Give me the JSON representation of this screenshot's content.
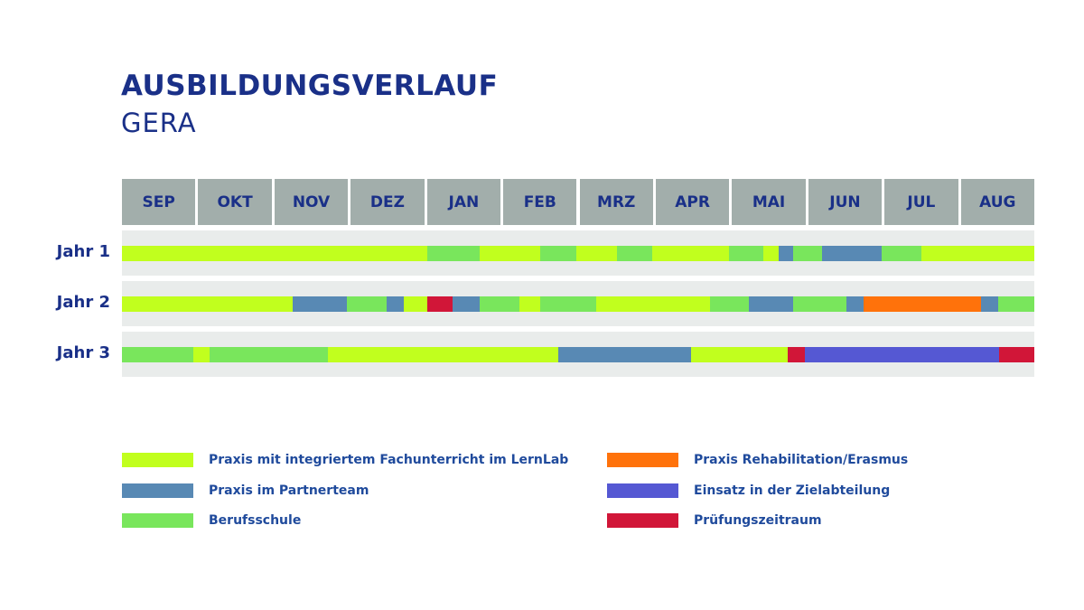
{
  "header": {
    "title": "AUSBILDUNGSVERLAUF",
    "subtitle": "GERA"
  },
  "colors": {
    "lernlab": "#c1ff1e",
    "partner": "#5889b4",
    "schule": "#79e65c",
    "reha": "#ff720b",
    "ziel": "#5558d3",
    "pruefung": "#d11638",
    "month_bg": "#a2aeab",
    "band_bg": "#e9eceb",
    "text": "#1a3088"
  },
  "chart_data": {
    "type": "gantt",
    "title": "AUSBILDUNGSVERLAUF",
    "subtitle": "GERA",
    "months": [
      "SEP",
      "OKT",
      "NOV",
      "DEZ",
      "JAN",
      "FEB",
      "MRZ",
      "APR",
      "MAI",
      "JUN",
      "JUL",
      "AUG"
    ],
    "unit": "months from start of SEP (0-12)",
    "legend": [
      {
        "key": "lernlab",
        "label": "Praxis mit integriertem Fachunterricht im LernLab",
        "color": "#c1ff1e"
      },
      {
        "key": "partner",
        "label": "Praxis im Partnerteam",
        "color": "#5889b4"
      },
      {
        "key": "schule",
        "label": "Berufsschule",
        "color": "#79e65c"
      },
      {
        "key": "reha",
        "label": "Praxis Rehabilitation/Erasmus",
        "color": "#ff720b"
      },
      {
        "key": "ziel",
        "label": "Einsatz in der Zielabteilung",
        "color": "#5558d3"
      },
      {
        "key": "pruefung",
        "label": "Prüfungszeitraum",
        "color": "#d11638"
      }
    ],
    "rows": [
      {
        "label": "Jahr 1",
        "segments": [
          {
            "type": "lernlab",
            "start": 0.0,
            "end": 4.02
          },
          {
            "type": "schule",
            "start": 4.02,
            "end": 4.71
          },
          {
            "type": "lernlab",
            "start": 4.71,
            "end": 5.5
          },
          {
            "type": "schule",
            "start": 5.5,
            "end": 5.98
          },
          {
            "type": "lernlab",
            "start": 5.98,
            "end": 6.51
          },
          {
            "type": "schule",
            "start": 6.51,
            "end": 6.98
          },
          {
            "type": "lernlab",
            "start": 6.98,
            "end": 7.98
          },
          {
            "type": "schule",
            "start": 7.98,
            "end": 8.43
          },
          {
            "type": "lernlab",
            "start": 8.43,
            "end": 8.64
          },
          {
            "type": "partner",
            "start": 8.64,
            "end": 8.83
          },
          {
            "type": "schule",
            "start": 8.83,
            "end": 9.21
          },
          {
            "type": "partner",
            "start": 9.21,
            "end": 9.99
          },
          {
            "type": "schule",
            "start": 9.99,
            "end": 10.52
          },
          {
            "type": "lernlab",
            "start": 10.52,
            "end": 12.0
          }
        ]
      },
      {
        "label": "Jahr 2",
        "segments": [
          {
            "type": "lernlab",
            "start": 0.0,
            "end": 2.25
          },
          {
            "type": "partner",
            "start": 2.25,
            "end": 2.96
          },
          {
            "type": "schule",
            "start": 2.96,
            "end": 3.48
          },
          {
            "type": "partner",
            "start": 3.48,
            "end": 3.71
          },
          {
            "type": "lernlab",
            "start": 3.71,
            "end": 4.02
          },
          {
            "type": "pruefung",
            "start": 4.02,
            "end": 4.35
          },
          {
            "type": "partner",
            "start": 4.35,
            "end": 4.71
          },
          {
            "type": "schule",
            "start": 4.71,
            "end": 5.23
          },
          {
            "type": "lernlab",
            "start": 5.23,
            "end": 5.5
          },
          {
            "type": "schule",
            "start": 5.5,
            "end": 6.24
          },
          {
            "type": "lernlab",
            "start": 6.24,
            "end": 7.74
          },
          {
            "type": "schule",
            "start": 7.74,
            "end": 8.25
          },
          {
            "type": "partner",
            "start": 8.25,
            "end": 8.83
          },
          {
            "type": "schule",
            "start": 8.83,
            "end": 9.53
          },
          {
            "type": "partner",
            "start": 9.53,
            "end": 9.76
          },
          {
            "type": "reha",
            "start": 9.76,
            "end": 11.3
          },
          {
            "type": "partner",
            "start": 11.3,
            "end": 11.52
          },
          {
            "type": "schule",
            "start": 11.52,
            "end": 12.0
          }
        ]
      },
      {
        "label": "Jahr 3",
        "segments": [
          {
            "type": "schule",
            "start": 0.0,
            "end": 0.94
          },
          {
            "type": "lernlab",
            "start": 0.94,
            "end": 1.15
          },
          {
            "type": "schule",
            "start": 1.15,
            "end": 2.71
          },
          {
            "type": "lernlab",
            "start": 2.71,
            "end": 5.74
          },
          {
            "type": "partner",
            "start": 5.74,
            "end": 7.49
          },
          {
            "type": "lernlab",
            "start": 7.49,
            "end": 8.76
          },
          {
            "type": "pruefung",
            "start": 8.76,
            "end": 8.98
          },
          {
            "type": "ziel",
            "start": 8.98,
            "end": 11.54
          },
          {
            "type": "pruefung",
            "start": 11.54,
            "end": 12.0
          }
        ]
      }
    ]
  }
}
